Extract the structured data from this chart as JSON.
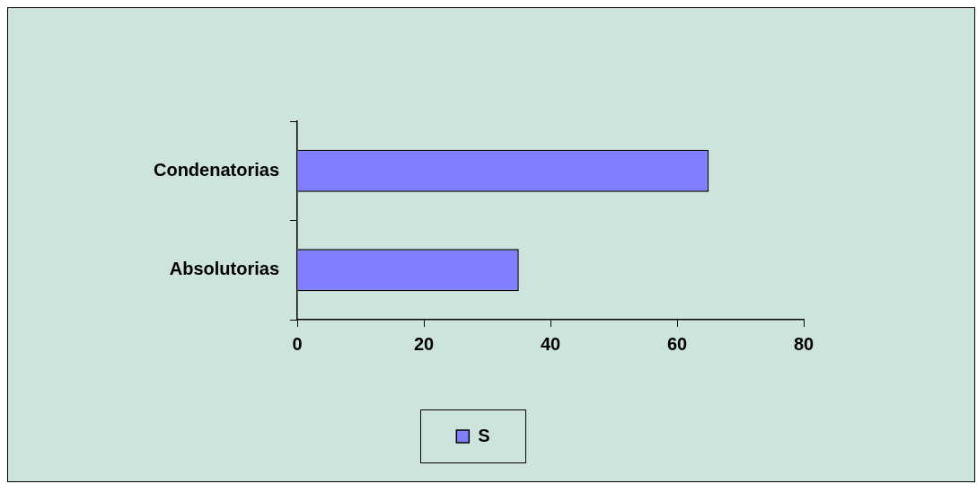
{
  "chart_data": {
    "type": "bar",
    "orientation": "horizontal",
    "categories": [
      "Condenatorias",
      "Absolutorias"
    ],
    "series": [
      {
        "name": "S",
        "color": "#8080ff",
        "values": [
          65,
          35
        ]
      }
    ],
    "xlim": [
      0,
      80
    ],
    "xticks": [
      0,
      20,
      40,
      60,
      80
    ],
    "grid": false,
    "legend": "bottom"
  }
}
